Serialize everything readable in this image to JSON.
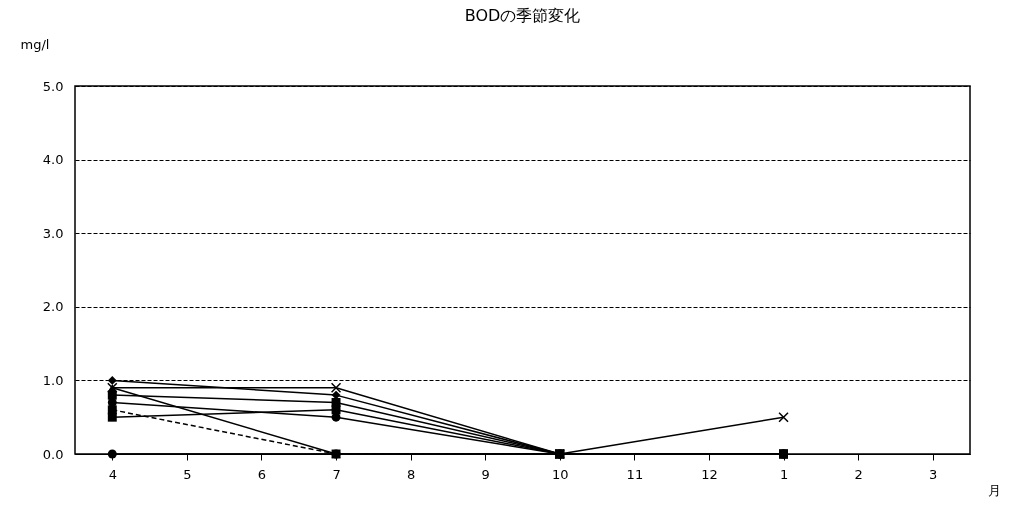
{
  "chart_data": {
    "type": "line",
    "title": "BODの季節変化",
    "ylabel": "mg/l",
    "xlabel": "月",
    "categories": [
      "4",
      "5",
      "6",
      "7",
      "8",
      "9",
      "10",
      "11",
      "12",
      "1",
      "2",
      "3"
    ],
    "ylim": [
      0,
      5
    ],
    "yticks": [
      {
        "value": 0,
        "label": "0.0"
      },
      {
        "value": 1,
        "label": "1.0"
      },
      {
        "value": 2,
        "label": "2.0"
      },
      {
        "value": 3,
        "label": "3.0"
      },
      {
        "value": 4,
        "label": "4.0"
      },
      {
        "value": 5,
        "label": "5.0"
      }
    ],
    "grid": "y",
    "series": [
      {
        "color": "#000000",
        "marker": "diamond",
        "values": [
          1.0,
          null,
          null,
          0.8,
          null,
          null,
          0,
          null,
          null,
          0,
          null,
          null
        ]
      },
      {
        "color": "#000000",
        "marker": "cross",
        "values": [
          0.9,
          null,
          null,
          0.9,
          null,
          null,
          0,
          null,
          null,
          0.5,
          null,
          null
        ]
      },
      {
        "color": "#000000",
        "marker": "triangle",
        "values": [
          0.9,
          null,
          null,
          0,
          null,
          null,
          0,
          null,
          null,
          0,
          null,
          null
        ]
      },
      {
        "color": "#000000",
        "marker": "square",
        "values": [
          0.8,
          null,
          null,
          0.7,
          null,
          null,
          0,
          null,
          null,
          0,
          null,
          null
        ]
      },
      {
        "color": "#000000",
        "marker": "circle",
        "values": [
          0.7,
          null,
          null,
          0.5,
          null,
          null,
          0,
          null,
          null,
          0,
          null,
          null
        ]
      },
      {
        "color": "#000000",
        "marker": "square",
        "values": [
          0.5,
          null,
          null,
          0.6,
          null,
          null,
          0,
          null,
          null,
          0,
          null,
          null
        ]
      },
      {
        "color": "#000000",
        "marker": "square",
        "line_style": "dashed",
        "values": [
          0.6,
          null,
          null,
          0,
          null,
          null,
          0,
          null,
          null,
          0,
          null,
          null
        ]
      },
      {
        "color": "#000000",
        "marker": "circle",
        "values": [
          0,
          null,
          null,
          0,
          null,
          null,
          0,
          null,
          null,
          0,
          null,
          null
        ]
      }
    ]
  }
}
